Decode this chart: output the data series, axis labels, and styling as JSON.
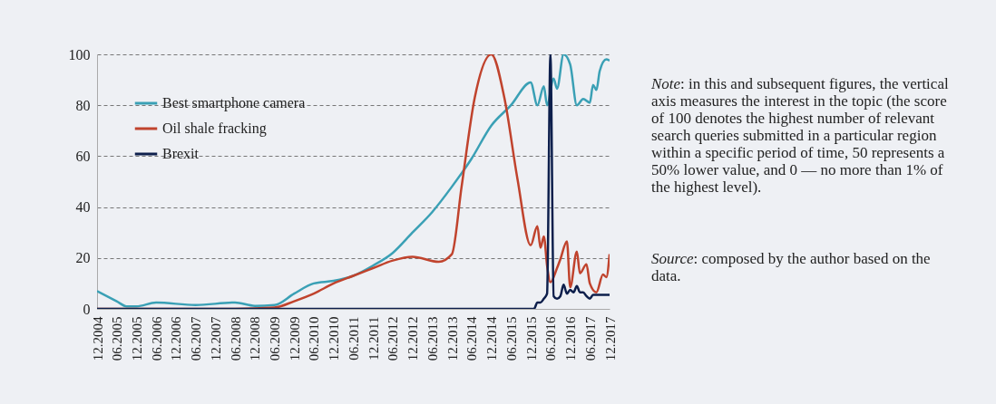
{
  "chart_data": {
    "type": "line",
    "annotations": [
      "Note: in this and subsequent figures, the vertical axis measures the interest in the topic (the score of 100 denotes the highest number of relevant search queries submitted in a particular region within a specific period of time, 50 represents a 50% lower value, and 0 — no more than 1% of the highest level).",
      "Source: composed by the author based on the data."
    ],
    "xlim": [
      "2004-12",
      "2017-12"
    ],
    "xticks": [
      {
        "value": "2004-12",
        "label": "12.2004"
      },
      {
        "value": "2005-06",
        "label": "06.2005"
      },
      {
        "value": "2005-12",
        "label": "12.2005"
      },
      {
        "value": "2006-06",
        "label": "06.2006"
      },
      {
        "value": "2006-12",
        "label": "12.2006"
      },
      {
        "value": "2007-06",
        "label": "06.2007"
      },
      {
        "value": "2007-12",
        "label": "12.2007"
      },
      {
        "value": "2008-06",
        "label": "06.2008"
      },
      {
        "value": "2008-12",
        "label": "12.2008"
      },
      {
        "value": "2009-06",
        "label": "06.2009"
      },
      {
        "value": "2009-12",
        "label": "12.2009"
      },
      {
        "value": "2010-06",
        "label": "06.2010"
      },
      {
        "value": "2010-12",
        "label": "12.2010"
      },
      {
        "value": "2011-06",
        "label": "06.2011"
      },
      {
        "value": "2011-12",
        "label": "12.2011"
      },
      {
        "value": "2012-06",
        "label": "06.2012"
      },
      {
        "value": "2012-12",
        "label": "12.2012"
      },
      {
        "value": "2013-06",
        "label": "06.2013"
      },
      {
        "value": "2013-12",
        "label": "12.2013"
      },
      {
        "value": "2014-06",
        "label": "06.2014"
      },
      {
        "value": "2014-12",
        "label": "12.2014"
      },
      {
        "value": "2015-06",
        "label": "06.2015"
      },
      {
        "value": "2015-12",
        "label": "12.2015"
      },
      {
        "value": "2016-06",
        "label": "06.2016"
      },
      {
        "value": "2016-12",
        "label": "12.2016"
      },
      {
        "value": "2017-06",
        "label": "06.2017"
      },
      {
        "value": "2017-12",
        "label": "12.2017"
      }
    ],
    "ylim": [
      0,
      100
    ],
    "yticks": [
      0,
      20,
      40,
      60,
      80,
      100
    ],
    "grid": "y",
    "legend": "top left",
    "line_style": "solid",
    "series": [
      {
        "name": "Best smartphone camera",
        "color": "#3aa0b5",
        "x": [
          "2004-12",
          "2005-06",
          "2005-09",
          "2005-12",
          "2006-06",
          "2007-06",
          "2008-06",
          "2008-12",
          "2009-06",
          "2009-12",
          "2010-06",
          "2010-12",
          "2011-06",
          "2011-12",
          "2012-06",
          "2012-12",
          "2013-06",
          "2013-12",
          "2014-06",
          "2014-12",
          "2015-06",
          "2015-12",
          "2016-02",
          "2016-04",
          "2016-05",
          "2016-07",
          "2016-08",
          "2016-10",
          "2016-12",
          "2017-02",
          "2017-04",
          "2017-06",
          "2017-07",
          "2017-08",
          "2017-09",
          "2017-11",
          "2017-12"
        ],
        "values": [
          7,
          3,
          1,
          1,
          2.5,
          1.5,
          2.5,
          1.2,
          1.5,
          6,
          10,
          11,
          13,
          17,
          22,
          30,
          38,
          48,
          59,
          72,
          80,
          89,
          80,
          87.5,
          80,
          90.5,
          86.5,
          100,
          96,
          80,
          82.5,
          81,
          88,
          86,
          93.5,
          98,
          97.5
        ]
      },
      {
        "name": "Oil shale fracking",
        "color": "#c0432d",
        "x": [
          "2004-12",
          "2008-06",
          "2009-06",
          "2009-12",
          "2010-06",
          "2010-12",
          "2011-06",
          "2011-12",
          "2012-06",
          "2012-12",
          "2013-08",
          "2013-12",
          "2014-03",
          "2014-07",
          "2014-12",
          "2015-04",
          "2015-08",
          "2015-12",
          "2016-02",
          "2016-03",
          "2016-04",
          "2016-05",
          "2016-06",
          "2016-08",
          "2016-09",
          "2016-11",
          "2016-12",
          "2017-02",
          "2017-03",
          "2017-05",
          "2017-06",
          "2017-08",
          "2017-10",
          "2017-11",
          "2017-12"
        ],
        "values": [
          0,
          0,
          0.5,
          3,
          6,
          10,
          13,
          16,
          19,
          20.5,
          18.5,
          21.5,
          48,
          83,
          100,
          83,
          51,
          25,
          32.5,
          24,
          28.5,
          17,
          10.5,
          16,
          19.5,
          26.5,
          8.5,
          22.5,
          14,
          17.5,
          10,
          6.5,
          13.5,
          12.5,
          21.5
        ]
      },
      {
        "name": "Brexit",
        "color": "#0d1f4c",
        "x": [
          "2004-12",
          "2015-12",
          "2016-01",
          "2016-02",
          "2016-03",
          "2016-04",
          "2016-05",
          "2016-06",
          "2016-07",
          "2016-08",
          "2016-09",
          "2016-10",
          "2016-11",
          "2016-12",
          "2017-01",
          "2017-02",
          "2017-03",
          "2017-04",
          "2017-05",
          "2017-06",
          "2017-07",
          "2017-08",
          "2017-12"
        ],
        "values": [
          0,
          0,
          0,
          2.5,
          2.5,
          4,
          6,
          100,
          5,
          4,
          5,
          9.5,
          6,
          7.5,
          6.5,
          9,
          6.5,
          6.5,
          5,
          4,
          5.5,
          5.5,
          5.5
        ]
      }
    ]
  }
}
